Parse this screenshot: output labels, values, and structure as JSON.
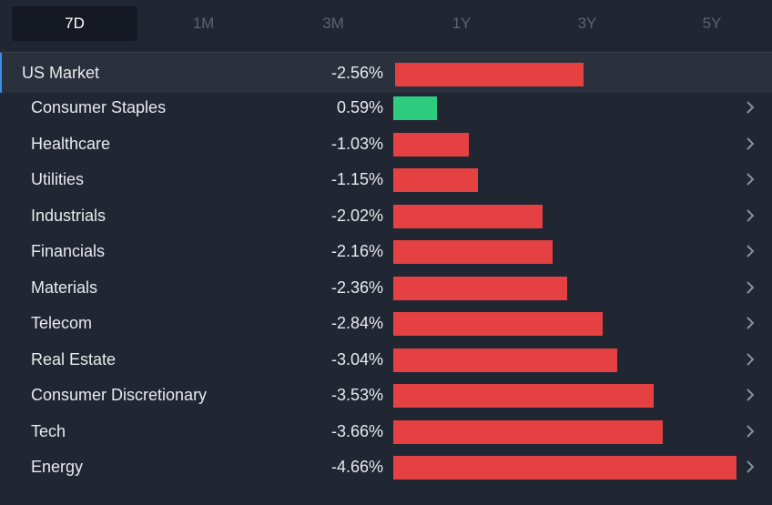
{
  "tabs": [
    {
      "label": "7D",
      "active": true
    },
    {
      "label": "1M",
      "active": false
    },
    {
      "label": "3M",
      "active": false
    },
    {
      "label": "1Y",
      "active": false
    },
    {
      "label": "3Y",
      "active": false
    },
    {
      "label": "5Y",
      "active": false
    }
  ],
  "colors": {
    "negative": "#e54142",
    "positive": "#2ecc7f",
    "accent": "#3a8ee6"
  },
  "market": {
    "label": "US Market",
    "value_text": "-2.56%",
    "value": -2.56
  },
  "sectors": [
    {
      "label": "Consumer Staples",
      "value_text": "0.59%",
      "value": 0.59
    },
    {
      "label": "Healthcare",
      "value_text": "-1.03%",
      "value": -1.03
    },
    {
      "label": "Utilities",
      "value_text": "-1.15%",
      "value": -1.15
    },
    {
      "label": "Industrials",
      "value_text": "-2.02%",
      "value": -2.02
    },
    {
      "label": "Financials",
      "value_text": "-2.16%",
      "value": -2.16
    },
    {
      "label": "Materials",
      "value_text": "-2.36%",
      "value": -2.36
    },
    {
      "label": "Telecom",
      "value_text": "-2.84%",
      "value": -2.84
    },
    {
      "label": "Real Estate",
      "value_text": "-3.04%",
      "value": -3.04
    },
    {
      "label": "Consumer Discretionary",
      "value_text": "-3.53%",
      "value": -3.53
    },
    {
      "label": "Tech",
      "value_text": "-3.66%",
      "value": -3.66
    },
    {
      "label": "Energy",
      "value_text": "-4.66%",
      "value": -4.66
    }
  ],
  "chevron_icon": "chevron-right-icon"
}
